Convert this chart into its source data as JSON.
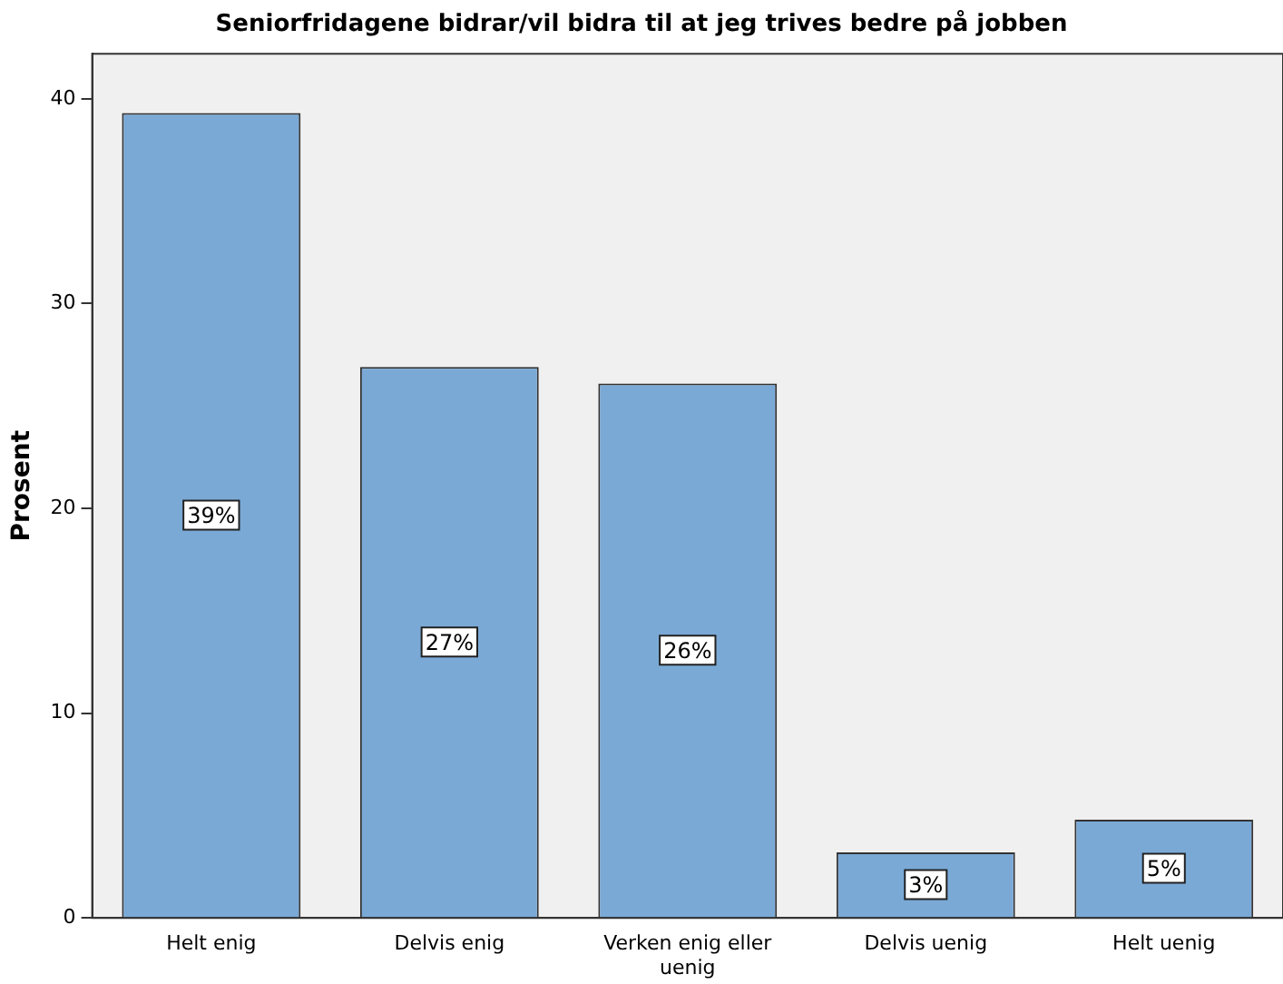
{
  "chart_data": {
    "type": "bar",
    "title": "Seniorfridagene bidrar/vil bidra til at jeg trives bedre på jobben",
    "ylabel": "Prosent",
    "categories": [
      "Helt enig",
      "Delvis enig",
      "Verken enig eller uenig",
      "Delvis uenig",
      "Helt uenig"
    ],
    "values": [
      39.3,
      26.9,
      26.1,
      3.2,
      4.8
    ],
    "color": "#7aa9d6",
    "value_labels": [
      "39%",
      "27%",
      "26%",
      "3%",
      "5%"
    ],
    "ylim": [
      0,
      42.2
    ],
    "yticks": [
      0,
      10,
      20,
      30,
      40
    ],
    "grid": false,
    "legend": false
  }
}
